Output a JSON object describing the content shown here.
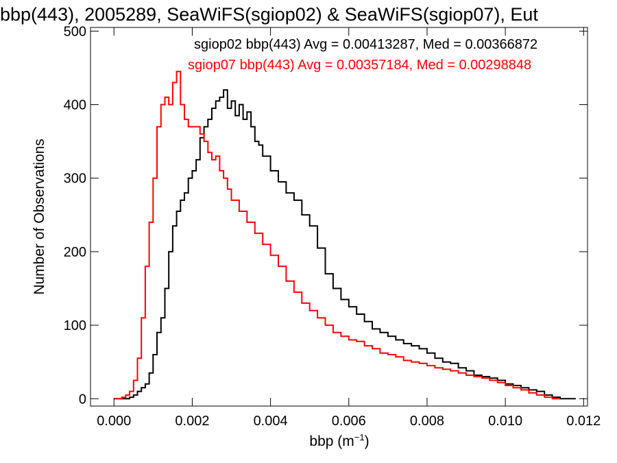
{
  "chart_data": {
    "type": "line",
    "title": "bbp(443), 2005289, SeaWiFS(sgiop02) & SeaWiFS(sgiop07), Eut",
    "xlabel": "bbp (m",
    "xlabel_exp": "−1",
    "xlabel_close": ")",
    "ylabel": "Number of Observations",
    "xlim": [
      -0.0006,
      0.0121
    ],
    "ylim": [
      -10,
      505
    ],
    "xticks": [
      0.0,
      0.002,
      0.004,
      0.006,
      0.008,
      0.01,
      0.012
    ],
    "xtick_labels": [
      "0.000",
      "0.002",
      "0.004",
      "0.006",
      "0.008",
      "0.010",
      "0.012"
    ],
    "yticks": [
      0,
      100,
      200,
      300,
      400,
      500
    ],
    "ytick_labels": [
      "0",
      "100",
      "200",
      "300",
      "400",
      "500"
    ],
    "annotations": [
      {
        "text": "sgiop02 bbp(443) Avg = 0.00413287, Med = 0.00366872",
        "color": "#000000"
      },
      {
        "text": "sgiop07 bbp(443) Avg = 0.00357184, Med = 0.00298848",
        "color": "#ff0000"
      }
    ],
    "series": [
      {
        "color": "#000000",
        "x": [
          0.0,
          0.0002,
          0.0004,
          0.0005,
          0.0006,
          0.0007,
          0.0008,
          0.0009,
          0.001,
          0.0011,
          0.0012,
          0.0013,
          0.0014,
          0.0015,
          0.0016,
          0.0017,
          0.0018,
          0.0019,
          0.002,
          0.0021,
          0.0022,
          0.0023,
          0.0024,
          0.0025,
          0.0026,
          0.0027,
          0.0028,
          0.0029,
          0.003,
          0.0031,
          0.0032,
          0.0033,
          0.0034,
          0.0035,
          0.0036,
          0.0037,
          0.0038,
          0.004,
          0.0042,
          0.0044,
          0.0046,
          0.0048,
          0.005,
          0.0052,
          0.0054,
          0.0056,
          0.0058,
          0.006,
          0.0062,
          0.0064,
          0.0066,
          0.0068,
          0.007,
          0.0072,
          0.0074,
          0.0076,
          0.0078,
          0.008,
          0.0082,
          0.0084,
          0.0086,
          0.0088,
          0.009,
          0.0092,
          0.0094,
          0.0096,
          0.0098,
          0.01,
          0.0102,
          0.0104,
          0.0106,
          0.0108,
          0.011,
          0.0112,
          0.0114,
          0.0116
        ],
        "y": [
          0,
          0,
          2,
          5,
          10,
          15,
          20,
          35,
          60,
          90,
          110,
          150,
          200,
          235,
          255,
          270,
          280,
          300,
          310,
          325,
          355,
          370,
          380,
          395,
          405,
          410,
          420,
          395,
          405,
          385,
          400,
          380,
          390,
          370,
          350,
          345,
          330,
          310,
          295,
          280,
          270,
          250,
          235,
          205,
          170,
          150,
          135,
          125,
          115,
          105,
          95,
          90,
          85,
          80,
          75,
          72,
          68,
          62,
          55,
          50,
          48,
          42,
          38,
          32,
          30,
          28,
          25,
          20,
          18,
          15,
          12,
          10,
          5,
          2,
          0,
          0
        ]
      },
      {
        "color": "#ff0000",
        "x": [
          0.0,
          0.0002,
          0.0003,
          0.0004,
          0.0005,
          0.0006,
          0.0007,
          0.0008,
          0.0009,
          0.001,
          0.0011,
          0.0012,
          0.0013,
          0.0014,
          0.0015,
          0.0016,
          0.0017,
          0.0018,
          0.0019,
          0.002,
          0.0021,
          0.0022,
          0.0023,
          0.0024,
          0.0025,
          0.0026,
          0.0027,
          0.0028,
          0.0029,
          0.003,
          0.0032,
          0.0034,
          0.0036,
          0.0038,
          0.004,
          0.0042,
          0.0044,
          0.0046,
          0.0048,
          0.005,
          0.0052,
          0.0054,
          0.0056,
          0.0058,
          0.006,
          0.0062,
          0.0064,
          0.0066,
          0.0068,
          0.007,
          0.0072,
          0.0074,
          0.0076,
          0.0078,
          0.008,
          0.0082,
          0.0084,
          0.0086,
          0.0088,
          0.009,
          0.0092,
          0.0094,
          0.0096,
          0.0098,
          0.01,
          0.0102,
          0.0104,
          0.0106,
          0.0108,
          0.011,
          0.0112
        ],
        "y": [
          0,
          2,
          5,
          10,
          25,
          55,
          110,
          180,
          240,
          300,
          370,
          400,
          410,
          400,
          430,
          445,
          400,
          380,
          370,
          370,
          370,
          360,
          350,
          335,
          325,
          330,
          310,
          300,
          285,
          270,
          255,
          240,
          225,
          210,
          195,
          180,
          160,
          145,
          130,
          120,
          110,
          100,
          90,
          85,
          80,
          78,
          72,
          68,
          62,
          60,
          57,
          52,
          50,
          48,
          45,
          42,
          40,
          38,
          35,
          32,
          30,
          28,
          25,
          22,
          18,
          15,
          12,
          8,
          5,
          2,
          0
        ]
      }
    ]
  }
}
